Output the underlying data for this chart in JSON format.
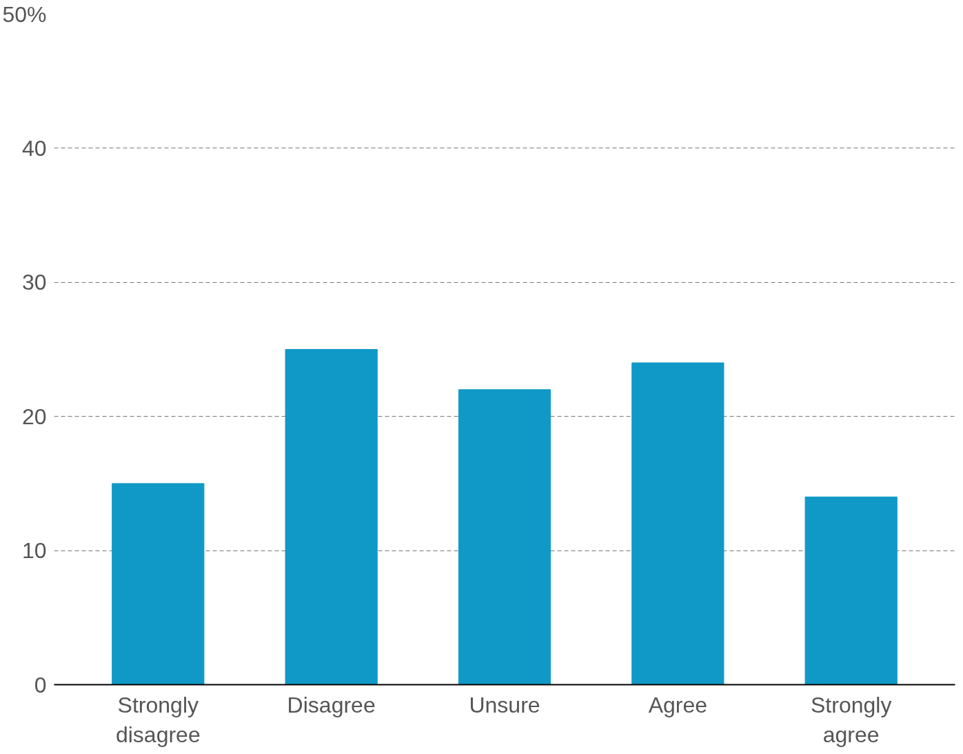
{
  "chart_data": {
    "type": "bar",
    "categories": [
      "Strongly\ndisagree",
      "Disagree",
      "Unsure",
      "Agree",
      "Strongly\nagree"
    ],
    "values": [
      15,
      25,
      22,
      24,
      14
    ],
    "color": "#1099c6",
    "ylim": [
      0,
      50
    ],
    "yticks": [
      0,
      10,
      20,
      30,
      40,
      {
        "value": 50,
        "label": "50%"
      }
    ],
    "grid": "y"
  }
}
